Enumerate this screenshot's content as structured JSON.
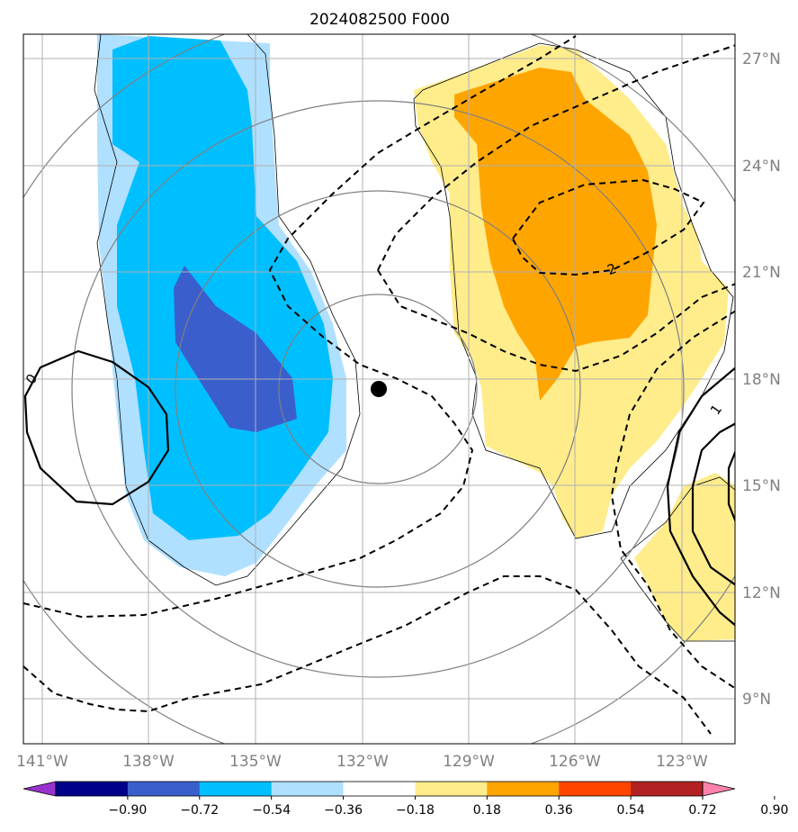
{
  "title": "2024082500 F000",
  "axes": {
    "longitude_ticks": [
      "141°W",
      "138°W",
      "135°W",
      "132°W",
      "129°W",
      "126°W",
      "123°W"
    ],
    "latitude_ticks": [
      "27°N",
      "24°N",
      "21°N",
      "18°N",
      "15°N",
      "12°N",
      "9°N"
    ]
  },
  "contour_labels": {
    "zero": "0",
    "one": "1",
    "two": "2"
  },
  "colorbar": {
    "ticks": [
      "−0.90",
      "−0.72",
      "−0.54",
      "−0.36",
      "−0.18",
      "0.18",
      "0.36",
      "0.54",
      "0.72",
      "0.90"
    ],
    "colors": [
      "#9932cc",
      "#00008b",
      "#3a5fcd",
      "#00bfff",
      "#b0e0ff",
      "#ffffff",
      "#ffec8b",
      "#ffa500",
      "#ff4500",
      "#b22222",
      "#ff82ab"
    ]
  },
  "fill_colors": {
    "neg_light": "#b0e0ff",
    "neg_mid": "#00bfff",
    "neg_dark": "#3a5fcd",
    "pos_light": "#ffec8b",
    "pos_mid": "#ffa500"
  },
  "storm_marker": "center-dot"
}
